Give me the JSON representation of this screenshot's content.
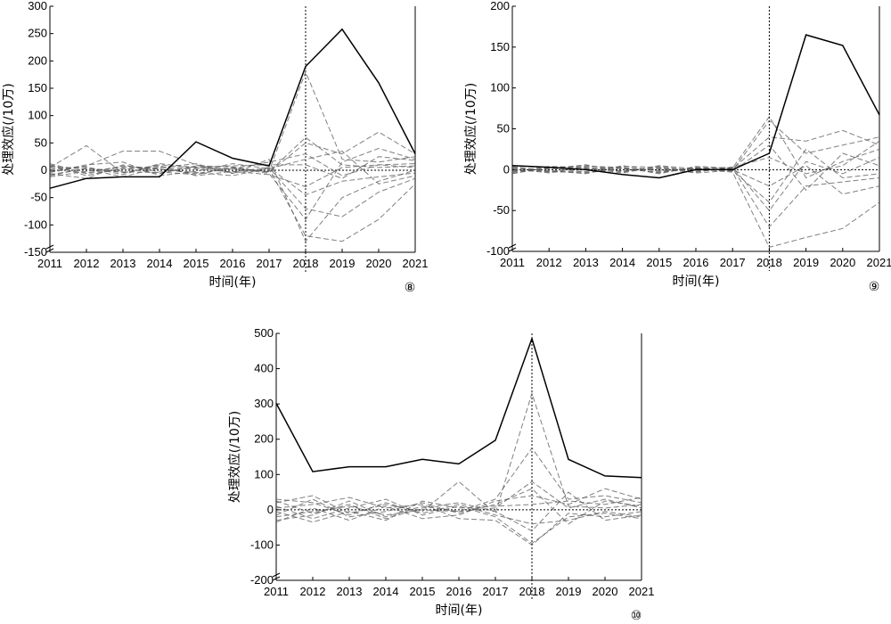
{
  "chart_data": [
    {
      "type": "line",
      "panel_mark": "⑧",
      "xlabel": "时间(年)",
      "ylabel": "处理效应(/10万)",
      "x": [
        2011,
        2012,
        2013,
        2014,
        2015,
        2016,
        2017,
        2018,
        2019,
        2020,
        2021
      ],
      "ylim": [
        -150,
        300
      ],
      "yticks": [
        -150,
        -100,
        -50,
        0,
        50,
        100,
        150,
        200,
        250,
        300
      ],
      "event_year": 2018,
      "treated": [
        -33,
        -15,
        -12,
        -12,
        52,
        22,
        8,
        190,
        258,
        160,
        30
      ],
      "placebo_series": [
        [
          12,
          -5,
          8,
          3,
          -6,
          4,
          -3,
          60,
          10,
          5,
          8
        ],
        [
          -8,
          3,
          -4,
          6,
          2,
          -3,
          5,
          -45,
          -20,
          -12,
          -5
        ],
        [
          5,
          45,
          -5,
          10,
          4,
          2,
          -2,
          180,
          20,
          15,
          25
        ],
        [
          -4,
          8,
          35,
          35,
          10,
          -5,
          3,
          -120,
          -130,
          -90,
          -25
        ],
        [
          10,
          -10,
          4,
          -6,
          8,
          6,
          -4,
          50,
          30,
          70,
          30
        ],
        [
          -12,
          -2,
          6,
          2,
          -4,
          -10,
          4,
          -70,
          -85,
          -40,
          -15
        ],
        [
          3,
          6,
          -8,
          12,
          5,
          3,
          15,
          30,
          -10,
          10,
          5
        ],
        [
          -6,
          -15,
          10,
          -3,
          -8,
          5,
          -6,
          -90,
          15,
          40,
          20
        ],
        [
          8,
          2,
          -12,
          5,
          12,
          -6,
          20,
          -130,
          -50,
          -20,
          0
        ],
        [
          -3,
          10,
          15,
          -10,
          -2,
          12,
          3,
          20,
          35,
          -25,
          -10
        ],
        [
          6,
          -6,
          2,
          8,
          -10,
          -2,
          -8,
          -30,
          5,
          10,
          12
        ],
        [
          -10,
          4,
          -3,
          -4,
          6,
          8,
          10,
          10,
          -15,
          25,
          18
        ]
      ]
    },
    {
      "type": "line",
      "panel_mark": "⑨",
      "xlabel": "时间(年)",
      "ylabel": "处理效应(/10万)",
      "x": [
        2011,
        2012,
        2013,
        2014,
        2015,
        2016,
        2017,
        2018,
        2019,
        2020,
        2021
      ],
      "ylim": [
        -100,
        200
      ],
      "yticks": [
        -100,
        -50,
        0,
        50,
        100,
        150,
        200
      ],
      "event_year": 2018,
      "treated": [
        5,
        3,
        0,
        -6,
        -10,
        0,
        0,
        20,
        165,
        152,
        67
      ],
      "placebo_series": [
        [
          -4,
          2,
          5,
          1,
          -3,
          2,
          -1,
          60,
          20,
          30,
          40
        ],
        [
          3,
          -3,
          -2,
          4,
          3,
          -2,
          2,
          -70,
          -20,
          -15,
          -10
        ],
        [
          -2,
          1,
          6,
          -3,
          5,
          1,
          -3,
          -95,
          -83,
          -72,
          -40
        ],
        [
          4,
          -2,
          -4,
          2,
          -4,
          3,
          1,
          40,
          35,
          48,
          30
        ],
        [
          -3,
          4,
          3,
          -2,
          2,
          -3,
          3,
          -50,
          10,
          -5,
          15
        ],
        [
          2,
          -1,
          -5,
          5,
          -2,
          2,
          -2,
          30,
          -25,
          20,
          5
        ],
        [
          -5,
          3,
          2,
          -4,
          4,
          -1,
          0,
          -20,
          5,
          -30,
          -20
        ],
        [
          1,
          -4,
          4,
          3,
          -5,
          4,
          2,
          65,
          -10,
          10,
          25
        ],
        [
          5,
          2,
          -3,
          -1,
          1,
          -4,
          -1,
          -40,
          25,
          -10,
          -5
        ],
        [
          -1,
          -2,
          1,
          2,
          -1,
          1,
          3,
          15,
          -5,
          5,
          35
        ]
      ]
    },
    {
      "type": "line",
      "panel_mark": "⑩",
      "xlabel": "时间(年)",
      "ylabel": "处理效应(/10万)",
      "x": [
        2011,
        2012,
        2013,
        2014,
        2015,
        2016,
        2017,
        2018,
        2019,
        2020,
        2021
      ],
      "ylim": [
        -200,
        500
      ],
      "yticks": [
        -200,
        -100,
        0,
        100,
        200,
        300,
        400,
        500
      ],
      "event_year": 2018,
      "treated": [
        302,
        108,
        122,
        122,
        143,
        130,
        197,
        485,
        143,
        96,
        91
      ],
      "placebo_series": [
        [
          20,
          40,
          -10,
          15,
          -5,
          80,
          -10,
          330,
          10,
          5,
          15
        ],
        [
          -30,
          -15,
          25,
          -20,
          10,
          -5,
          30,
          175,
          30,
          40,
          20
        ],
        [
          10,
          -25,
          5,
          30,
          -15,
          10,
          -20,
          -95,
          -20,
          -10,
          -25
        ],
        [
          -15,
          30,
          -20,
          -5,
          20,
          -10,
          15,
          60,
          -40,
          25,
          10
        ],
        [
          25,
          -10,
          15,
          -25,
          5,
          20,
          -5,
          -60,
          50,
          -30,
          -15
        ],
        [
          -35,
          5,
          -30,
          10,
          -25,
          -15,
          25,
          40,
          15,
          60,
          30
        ],
        [
          5,
          15,
          35,
          5,
          15,
          -25,
          -30,
          -100,
          -10,
          -20,
          -5
        ],
        [
          -5,
          -35,
          -5,
          -30,
          25,
          5,
          10,
          15,
          25,
          15,
          35
        ],
        [
          30,
          20,
          -15,
          20,
          -10,
          15,
          -15,
          -40,
          -30,
          -5,
          -20
        ],
        [
          -20,
          -5,
          10,
          -15,
          0,
          -5,
          5,
          80,
          5,
          30,
          5
        ]
      ]
    }
  ]
}
